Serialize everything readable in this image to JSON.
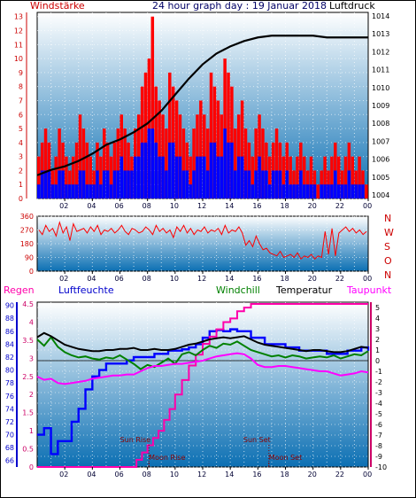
{
  "header": {
    "left_label": "Windstärke",
    "title": "24 hour graph day : 19 Januar 2018",
    "right_label": "Luftdruck"
  },
  "colors": {
    "bg_top": "#ffffff",
    "bg_bottom": "#0b6fb3",
    "wind_gust": "#ff0000",
    "wind_avg": "#0000ff",
    "pressure": "#000000",
    "direction": "#ff0000",
    "humidity": "#0000ff",
    "rain": "#ff00aa",
    "dewpoint": "#ff00ff",
    "windchill": "#008000",
    "temperature": "#000000",
    "sun_moon": "#8b0000"
  },
  "chart_data": [
    {
      "type": "bar",
      "title": "24 hour graph day : 19 Januar 2018",
      "x_tick_labels": [
        "02",
        "04",
        "06",
        "08",
        "10",
        "12",
        "14",
        "16",
        "18",
        "20",
        "22",
        "00"
      ],
      "left_axis": {
        "label": "Windstärke",
        "ticks": [
          0,
          1,
          2,
          3,
          4,
          5,
          6,
          7,
          8,
          9,
          10,
          11,
          12,
          13
        ]
      },
      "right_axis": {
        "label": "Luftdruck",
        "ticks": [
          1004,
          1005,
          1006,
          1007,
          1008,
          1009,
          1010,
          1011,
          1012,
          1013,
          1014
        ]
      },
      "series": [
        {
          "name": "",
          "kind": "gust",
          "values": [
            3,
            4,
            5,
            4,
            2,
            3,
            5,
            4,
            3,
            2,
            3,
            4,
            6,
            5,
            4,
            3,
            2,
            4,
            3,
            5,
            4,
            3,
            4,
            5,
            6,
            5,
            4,
            3,
            5,
            6,
            8,
            9,
            10,
            13,
            8,
            7,
            6,
            5,
            9,
            8,
            7,
            6,
            5,
            4,
            3,
            5,
            6,
            7,
            6,
            5,
            9,
            8,
            7,
            6,
            10,
            9,
            8,
            5,
            6,
            7,
            5,
            4,
            3,
            5,
            6,
            5,
            4,
            3,
            4,
            5,
            4,
            3,
            4,
            3,
            2,
            3,
            4,
            3,
            2,
            3,
            2,
            1,
            2,
            3,
            2,
            3,
            4,
            3,
            2,
            3,
            4,
            3,
            2,
            3,
            2,
            1
          ]
        },
        {
          "name": "",
          "kind": "average",
          "values": [
            1,
            2,
            2,
            2,
            1,
            1,
            2,
            2,
            1,
            1,
            1,
            1,
            2,
            2,
            1,
            1,
            1,
            2,
            1,
            2,
            2,
            1,
            2,
            2,
            3,
            2,
            2,
            2,
            3,
            3,
            4,
            4,
            5,
            5,
            4,
            3,
            3,
            2,
            4,
            4,
            3,
            3,
            2,
            2,
            1,
            2,
            3,
            3,
            3,
            2,
            4,
            4,
            3,
            3,
            5,
            4,
            4,
            2,
            3,
            3,
            2,
            2,
            1,
            2,
            3,
            2,
            2,
            1,
            2,
            2,
            2,
            1,
            2,
            1,
            1,
            1,
            2,
            1,
            1,
            1,
            1,
            0,
            1,
            1,
            1,
            1,
            2,
            1,
            1,
            1,
            2,
            1,
            1,
            1,
            1,
            0
          ]
        },
        {
          "name": "",
          "kind": "pressure",
          "x_hours": [
            0,
            1,
            2,
            3,
            4,
            5,
            6,
            7,
            8,
            9,
            10,
            11,
            12,
            13,
            14,
            15,
            16,
            17,
            18,
            19,
            20,
            21,
            22,
            23,
            24
          ],
          "values": [
            1005.1,
            1005.4,
            1005.6,
            1005.9,
            1006.3,
            1006.8,
            1007.1,
            1007.5,
            1008.0,
            1008.7,
            1009.6,
            1010.5,
            1011.3,
            1011.9,
            1012.3,
            1012.6,
            1012.8,
            1012.9,
            1012.9,
            1012.9,
            1012.9,
            1012.8,
            1012.8,
            1012.8,
            1012.8
          ]
        }
      ]
    },
    {
      "type": "line",
      "x_tick_labels": [
        "02",
        "04",
        "06",
        "08",
        "10",
        "12",
        "14",
        "16",
        "18",
        "20",
        "22",
        "00"
      ],
      "left_axis": {
        "ticks": [
          0,
          90,
          180,
          270,
          360
        ]
      },
      "right_axis": {
        "labels": [
          "N",
          "W",
          "S",
          "O",
          "N"
        ]
      },
      "series": [
        {
          "name": "",
          "kind": "direction",
          "values": [
            270,
            240,
            300,
            260,
            280,
            230,
            320,
            250,
            290,
            200,
            310,
            260,
            270,
            280,
            250,
            290,
            260,
            300,
            240,
            270,
            260,
            280,
            250,
            270,
            300,
            260,
            240,
            280,
            270,
            250,
            260,
            290,
            270,
            240,
            300,
            260,
            280,
            250,
            270,
            220,
            290,
            260,
            300,
            250,
            280,
            240,
            270,
            260,
            290,
            250,
            270,
            260,
            280,
            240,
            300,
            250,
            270,
            260,
            290,
            250,
            170,
            200,
            160,
            230,
            180,
            140,
            150,
            120,
            110,
            100,
            130,
            90,
            100,
            110,
            90,
            120,
            80,
            100,
            90,
            110,
            80,
            100,
            90,
            260,
            110,
            280,
            100,
            250,
            270,
            290,
            260,
            280,
            250,
            270,
            240,
            260
          ]
        }
      ]
    },
    {
      "type": "line",
      "x_tick_labels": [
        "02",
        "04",
        "06",
        "08",
        "10",
        "12",
        "14",
        "16",
        "18",
        "20",
        "22",
        "00"
      ],
      "axes": {
        "rain": {
          "label": "Regen",
          "ticks": [
            0,
            0.5,
            1,
            1.5,
            2,
            2.5,
            3,
            3.5,
            4,
            4.5
          ]
        },
        "humidity": {
          "label": "Luftfeuchte",
          "ticks": [
            66,
            68,
            70,
            72,
            74,
            76,
            78,
            80,
            82,
            84,
            86,
            88,
            90
          ]
        },
        "temperature": {
          "label": "Temperatur",
          "ticks": [
            -10,
            -9,
            -8,
            -7,
            -6,
            -5,
            -4,
            -3,
            -2,
            -1,
            0,
            1,
            2,
            3,
            4,
            5
          ]
        }
      },
      "labels": {
        "windchill": "Windchill",
        "dewpoint": "Taupunkt"
      },
      "annotations": [
        "Sun Rise",
        "Moon Rise",
        "Sun Set",
        "Moon Set"
      ],
      "series": [
        {
          "name": "Luftfeuchte",
          "kind": "humidity",
          "unit": "%",
          "x_hours": [
            0,
            0.5,
            1,
            1.5,
            2,
            2.5,
            3,
            3.5,
            4,
            4.5,
            5,
            5.5,
            6,
            6.5,
            7,
            7.5,
            8,
            8.5,
            9,
            9.5,
            10,
            10.5,
            11,
            11.5,
            12,
            12.5,
            13,
            13.5,
            14,
            14.5,
            15,
            15.5,
            16,
            16.5,
            17,
            17.5,
            18,
            18.5,
            19,
            19.5,
            20,
            20.5,
            21,
            21.5,
            22,
            22.5,
            23,
            23.5,
            24
          ],
          "values": [
            70,
            71,
            67,
            69,
            69,
            72,
            74,
            77,
            79,
            80,
            81,
            81,
            81,
            81.5,
            82,
            82,
            82,
            82.5,
            82.5,
            83,
            83,
            83.2,
            83.5,
            84,
            85,
            86,
            86.2,
            86,
            86.3,
            86,
            86,
            85,
            85,
            84,
            84,
            84,
            83.5,
            83.5,
            83,
            83,
            83,
            83,
            82.5,
            82.5,
            82.5,
            83,
            83,
            83.5,
            83
          ]
        },
        {
          "name": "Regen",
          "kind": "rain",
          "unit": "mm",
          "x_hours": [
            0,
            7,
            7.2,
            7.6,
            8,
            8.4,
            8.8,
            9.2,
            9.6,
            10,
            10.5,
            11,
            11.5,
            12,
            12.5,
            13,
            13.5,
            14,
            14.5,
            15,
            15.5,
            16,
            24
          ],
          "values": [
            0,
            0,
            0.2,
            0.4,
            0.6,
            0.8,
            1.0,
            1.3,
            1.6,
            2.0,
            2.4,
            2.8,
            3.1,
            3.4,
            3.6,
            3.8,
            4.0,
            4.1,
            4.3,
            4.4,
            4.5,
            4.5,
            4.5
          ]
        },
        {
          "name": "Windchill",
          "kind": "windchill",
          "unit": "°C",
          "x_hours": [
            0,
            0.5,
            1,
            1.5,
            2,
            2.5,
            3,
            3.5,
            4,
            4.5,
            5,
            5.5,
            6,
            6.5,
            7,
            7.5,
            8,
            8.5,
            9,
            9.5,
            10,
            10.5,
            11,
            11.5,
            12,
            12.5,
            13,
            13.5,
            14,
            14.5,
            15,
            15.5,
            16,
            16.5,
            17,
            17.5,
            18,
            18.5,
            19,
            19.5,
            20,
            20.5,
            21,
            21.5,
            22,
            22.5,
            23,
            23.5,
            24
          ],
          "values": [
            2,
            1.4,
            2.2,
            1.3,
            0.8,
            0.5,
            0.3,
            0.4,
            0.2,
            0.1,
            0.3,
            0.2,
            0.5,
            0.1,
            -0.3,
            -0.8,
            -0.4,
            -0.6,
            -0.2,
            0.2,
            -0.3,
            0.6,
            0.8,
            0.5,
            1,
            1.4,
            1.2,
            1.6,
            1.5,
            1.8,
            1.4,
            1,
            0.8,
            0.6,
            0.4,
            0.5,
            0.3,
            0.5,
            0.4,
            0.2,
            0.3,
            0.4,
            0.3,
            0.5,
            0.2,
            0.4,
            0.6,
            0.5,
            0.9
          ]
        },
        {
          "name": "Temperatur",
          "kind": "temperature",
          "unit": "°C",
          "x_hours": [
            0,
            0.5,
            1,
            1.5,
            2,
            2.5,
            3,
            3.5,
            4,
            4.5,
            5,
            5.5,
            6,
            6.5,
            7,
            7.5,
            8,
            8.5,
            9,
            9.5,
            10,
            10.5,
            11,
            11.5,
            12,
            12.5,
            13,
            13.5,
            14,
            14.5,
            15,
            15.5,
            16,
            16.5,
            17,
            17.5,
            18,
            18.5,
            19,
            19.5,
            20,
            20.5,
            21,
            21.5,
            22,
            22.5,
            23,
            23.5,
            24
          ],
          "values": [
            2.2,
            2.6,
            2.3,
            1.9,
            1.5,
            1.3,
            1.1,
            1.0,
            0.9,
            0.9,
            1.0,
            1.0,
            1.1,
            1.1,
            1.2,
            1.0,
            1.0,
            1.1,
            1.0,
            1.0,
            1.1,
            1.3,
            1.5,
            1.6,
            1.8,
            2.0,
            2.1,
            2.2,
            2.1,
            2.2,
            2.3,
            2.0,
            1.7,
            1.5,
            1.4,
            1.3,
            1.2,
            1.1,
            1.0,
            0.9,
            1.0,
            1.0,
            0.9,
            0.8,
            0.8,
            0.9,
            1.1,
            1.3,
            1.2
          ]
        },
        {
          "name": "Taupunkt",
          "kind": "dewpoint",
          "unit": "°C",
          "x_hours": [
            0,
            0.5,
            1,
            1.5,
            2,
            2.5,
            3,
            3.5,
            4,
            4.5,
            5,
            5.5,
            6,
            6.5,
            7,
            7.5,
            8,
            8.5,
            9,
            9.5,
            10,
            10.5,
            11,
            11.5,
            12,
            12.5,
            13,
            13.5,
            14,
            14.5,
            15,
            15.5,
            16,
            16.5,
            17,
            17.5,
            18,
            18.5,
            19,
            19.5,
            20,
            20.5,
            21,
            21.5,
            22,
            22.5,
            23,
            23.5,
            24
          ],
          "values": [
            -1.5,
            -1.8,
            -1.7,
            -2.1,
            -2.2,
            -2.1,
            -2.0,
            -1.9,
            -1.7,
            -1.6,
            -1.5,
            -1.4,
            -1.4,
            -1.3,
            -1.3,
            -1.0,
            -0.7,
            -0.5,
            -0.5,
            -0.4,
            -0.3,
            -0.3,
            -0.2,
            -0.1,
            0,
            0.2,
            0.4,
            0.5,
            0.6,
            0.7,
            0.6,
            0.2,
            -0.4,
            -0.6,
            -0.6,
            -0.5,
            -0.5,
            -0.6,
            -0.7,
            -0.8,
            -0.9,
            -1.0,
            -1.0,
            -1.2,
            -1.4,
            -1.3,
            -1.2,
            -1.0,
            -1.1
          ]
        }
      ],
      "events": [
        {
          "label": "Sun Rise",
          "hour": 8.1
        },
        {
          "label": "Moon Rise",
          "hour": 8.1
        },
        {
          "label": "Sun Set",
          "hour": 16.8
        },
        {
          "label": "Moon Set",
          "hour": 16.8
        }
      ]
    }
  ]
}
